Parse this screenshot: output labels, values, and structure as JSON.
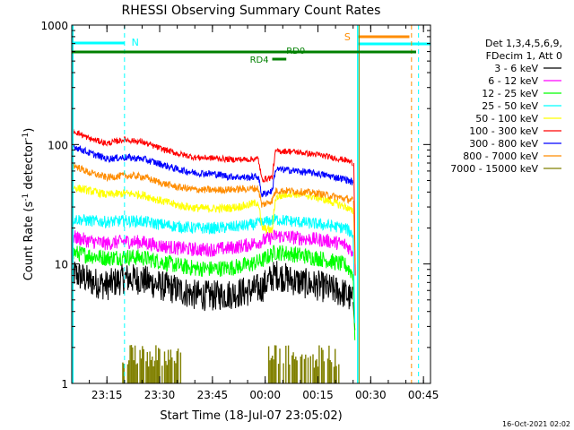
{
  "chart_data": {
    "type": "line",
    "title": "RHESSI Observing Summary Count Rates",
    "xlabel": "Start Time (18-Jul-07 23:05:02)",
    "ylabel_main": "Count Rate (s",
    "ylabel_sup1": "-1",
    "ylabel_mid": " detector",
    "ylabel_sup2": "-1",
    "ylabel_end": ")",
    "yscale": "log",
    "ylim": [
      1,
      1000
    ],
    "xlim_minutes_after_start": [
      0,
      102
    ],
    "x_ticks": [
      {
        "label": "23:15",
        "t": 10
      },
      {
        "label": "23:30",
        "t": 25
      },
      {
        "label": "23:45",
        "t": 40
      },
      {
        "label": "00:00",
        "t": 55
      },
      {
        "label": "00:15",
        "t": 70
      },
      {
        "label": "00:30",
        "t": 85
      },
      {
        "label": "00:45",
        "t": 100
      }
    ],
    "y_ticks": [
      {
        "label": "1",
        "v": 1
      },
      {
        "label": "10",
        "v": 10
      },
      {
        "label": "100",
        "v": 100
      },
      {
        "label": "1000",
        "v": 1000
      }
    ],
    "legend": {
      "position": "right",
      "header": [
        "Det 1,3,4,5,6,9,",
        "FDecim 1, Att 0"
      ]
    },
    "series": [
      {
        "name": "3 - 6 keV",
        "color": "#000000",
        "points": [
          [
            0,
            8.5
          ],
          [
            5,
            7.2
          ],
          [
            10,
            6.6
          ],
          [
            15,
            7.6
          ],
          [
            20,
            7.4
          ],
          [
            25,
            6.6
          ],
          [
            30,
            6.1
          ],
          [
            35,
            5.5
          ],
          [
            40,
            5.4
          ],
          [
            45,
            5.6
          ],
          [
            50,
            5.9
          ],
          [
            54,
            6.3
          ],
          [
            58,
            8.2
          ],
          [
            62,
            7.4
          ],
          [
            66,
            6.9
          ],
          [
            70,
            6.6
          ],
          [
            74,
            6.1
          ],
          [
            78,
            5.6
          ],
          [
            80,
            4.8
          ]
        ]
      },
      {
        "name": "6 - 12 keV",
        "color": "#ff00ff",
        "points": [
          [
            0,
            17
          ],
          [
            5,
            15.5
          ],
          [
            10,
            14.8
          ],
          [
            15,
            15.5
          ],
          [
            20,
            15.2
          ],
          [
            25,
            14.2
          ],
          [
            30,
            13.6
          ],
          [
            35,
            13.2
          ],
          [
            40,
            13.2
          ],
          [
            45,
            13.6
          ],
          [
            50,
            14.4
          ],
          [
            54,
            15.5
          ],
          [
            58,
            17.2
          ],
          [
            62,
            16.8
          ],
          [
            66,
            16.3
          ],
          [
            70,
            16
          ],
          [
            74,
            15.4
          ],
          [
            78,
            14.4
          ],
          [
            80,
            12.5
          ]
        ]
      },
      {
        "name": "12 - 25 keV",
        "color": "#00ff00",
        "points": [
          [
            0,
            12.5
          ],
          [
            5,
            11.8
          ],
          [
            10,
            11.2
          ],
          [
            15,
            11.5
          ],
          [
            20,
            11.3
          ],
          [
            25,
            10.5
          ],
          [
            30,
            9.7
          ],
          [
            35,
            9.2
          ],
          [
            40,
            9.1
          ],
          [
            45,
            9.3
          ],
          [
            50,
            9.8
          ],
          [
            54,
            10.6
          ],
          [
            58,
            12.6
          ],
          [
            62,
            12.2
          ],
          [
            66,
            11.7
          ],
          [
            70,
            11.2
          ],
          [
            74,
            10.5
          ],
          [
            78,
            9.7
          ],
          [
            80,
            8.2
          ]
        ]
      },
      {
        "name": "25 - 50 keV",
        "color": "#00ffff",
        "points": [
          [
            0,
            24
          ],
          [
            5,
            23
          ],
          [
            10,
            22.5
          ],
          [
            15,
            23
          ],
          [
            20,
            22.7
          ],
          [
            25,
            21.5
          ],
          [
            30,
            20.6
          ],
          [
            35,
            20
          ],
          [
            40,
            19.9
          ],
          [
            45,
            20.3
          ],
          [
            50,
            21
          ],
          [
            54,
            22
          ],
          [
            58,
            23.6
          ],
          [
            62,
            22.9
          ],
          [
            66,
            22.2
          ],
          [
            70,
            21.6
          ],
          [
            74,
            20.8
          ],
          [
            78,
            19.8
          ],
          [
            80,
            17.5
          ]
        ]
      },
      {
        "name": "50 - 100 keV",
        "color": "#ffff00",
        "points": [
          [
            0,
            44
          ],
          [
            5,
            41
          ],
          [
            10,
            38
          ],
          [
            15,
            39
          ],
          [
            20,
            38
          ],
          [
            25,
            34
          ],
          [
            30,
            31
          ],
          [
            35,
            29.5
          ],
          [
            40,
            29
          ],
          [
            45,
            29.5
          ],
          [
            50,
            31
          ],
          [
            53,
            33
          ],
          [
            54,
            20
          ],
          [
            57,
            19
          ],
          [
            58,
            36
          ],
          [
            62,
            39
          ],
          [
            66,
            38
          ],
          [
            70,
            36
          ],
          [
            74,
            33
          ],
          [
            78,
            30
          ],
          [
            80,
            27
          ]
        ]
      },
      {
        "name": "100 - 300 keV",
        "color": "#ff0000",
        "points": [
          [
            0,
            132
          ],
          [
            5,
            112
          ],
          [
            10,
            102
          ],
          [
            15,
            110
          ],
          [
            20,
            105
          ],
          [
            25,
            93
          ],
          [
            30,
            84
          ],
          [
            35,
            78
          ],
          [
            40,
            77
          ],
          [
            45,
            75
          ],
          [
            50,
            75
          ],
          [
            53,
            76
          ],
          [
            54,
            51
          ],
          [
            57,
            53
          ],
          [
            58,
            88
          ],
          [
            62,
            88
          ],
          [
            66,
            85
          ],
          [
            70,
            82
          ],
          [
            74,
            78
          ],
          [
            78,
            74
          ],
          [
            80,
            70
          ]
        ]
      },
      {
        "name": "300 - 800 keV",
        "color": "#0000ff",
        "points": [
          [
            0,
            98
          ],
          [
            5,
            85
          ],
          [
            10,
            76
          ],
          [
            15,
            78
          ],
          [
            20,
            76
          ],
          [
            25,
            69
          ],
          [
            30,
            62
          ],
          [
            35,
            58
          ],
          [
            40,
            57
          ],
          [
            45,
            54
          ],
          [
            50,
            53
          ],
          [
            53,
            54
          ],
          [
            54,
            38
          ],
          [
            57,
            41
          ],
          [
            58,
            62
          ],
          [
            62,
            61
          ],
          [
            66,
            59
          ],
          [
            70,
            57
          ],
          [
            74,
            54
          ],
          [
            78,
            51
          ],
          [
            80,
            48
          ]
        ]
      },
      {
        "name": "800 - 7000 keV",
        "color": "#ff8c00",
        "points": [
          [
            0,
            68
          ],
          [
            5,
            58
          ],
          [
            10,
            53
          ],
          [
            15,
            55
          ],
          [
            20,
            54
          ],
          [
            25,
            48
          ],
          [
            30,
            44
          ],
          [
            35,
            42
          ],
          [
            40,
            41.5
          ],
          [
            45,
            42
          ],
          [
            50,
            42.5
          ],
          [
            53,
            43
          ],
          [
            54,
            31
          ],
          [
            57,
            34
          ],
          [
            58,
            41
          ],
          [
            62,
            41
          ],
          [
            66,
            40
          ],
          [
            70,
            39
          ],
          [
            74,
            37
          ],
          [
            78,
            35
          ],
          [
            80,
            34
          ]
        ]
      },
      {
        "name": "7000 - 15000 keV",
        "color": "#808000",
        "points": []
      }
    ],
    "annotations": [
      {
        "text": "N",
        "color": "#00ffff"
      },
      {
        "text": "S",
        "color": "#ff8c00"
      },
      {
        "text": "RD0",
        "color": "#008000"
      },
      {
        "text": "RD4",
        "color": "#008000"
      }
    ],
    "timestamp": "16-Oct-2021 02:02"
  }
}
